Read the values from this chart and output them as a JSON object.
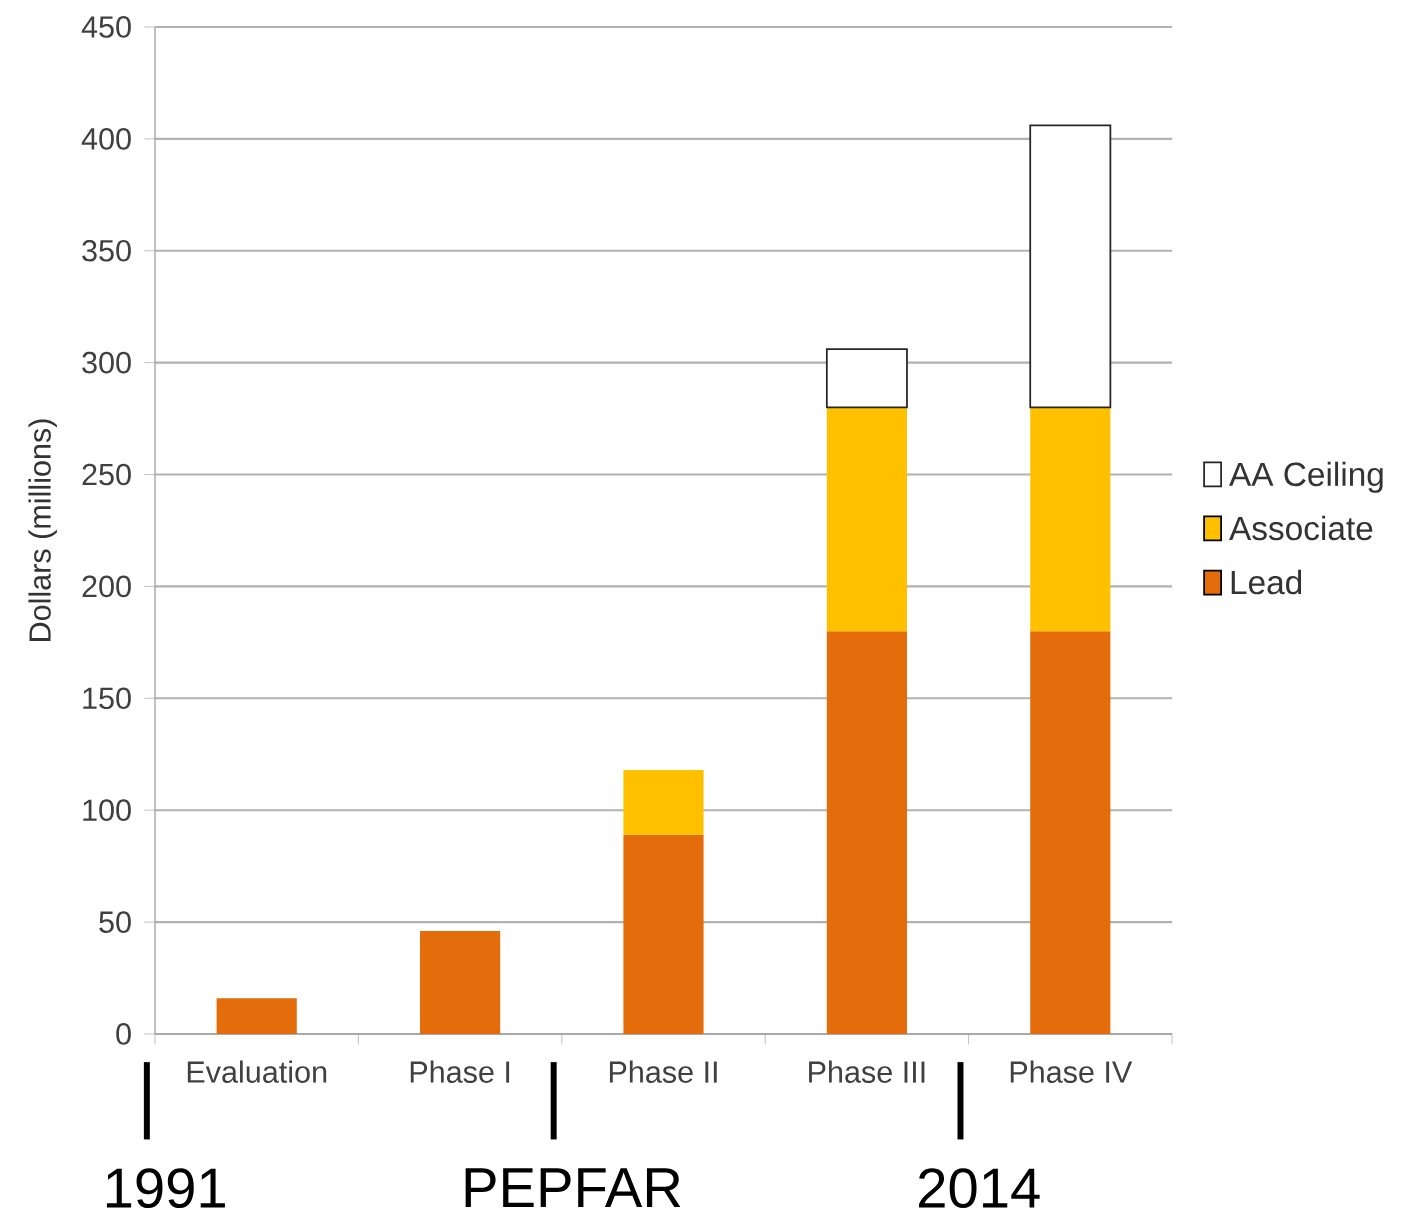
{
  "chart_data": {
    "type": "bar",
    "stacked": true,
    "ylabel": "Dollars (millions)",
    "categories": [
      "Evaluation",
      "Phase I",
      "Phase II",
      "Phase III",
      "Phase IV"
    ],
    "series": [
      {
        "name": "Lead",
        "color": "#e46c0a",
        "values": [
          16,
          46,
          89,
          180,
          180
        ]
      },
      {
        "name": "Associate",
        "color": "#ffc000",
        "values": [
          null,
          null,
          29,
          100,
          100
        ]
      },
      {
        "name": "AA Ceiling",
        "color": "#ffffff",
        "values": [
          null,
          null,
          null,
          26,
          126
        ]
      }
    ],
    "ylim": [
      0,
      450
    ],
    "yticks": [
      0,
      50,
      100,
      150,
      200,
      250,
      300,
      350,
      400,
      450
    ],
    "grid": "y",
    "legend": "right",
    "annotations": [
      "1991",
      "PEPFAR",
      "2014"
    ]
  }
}
